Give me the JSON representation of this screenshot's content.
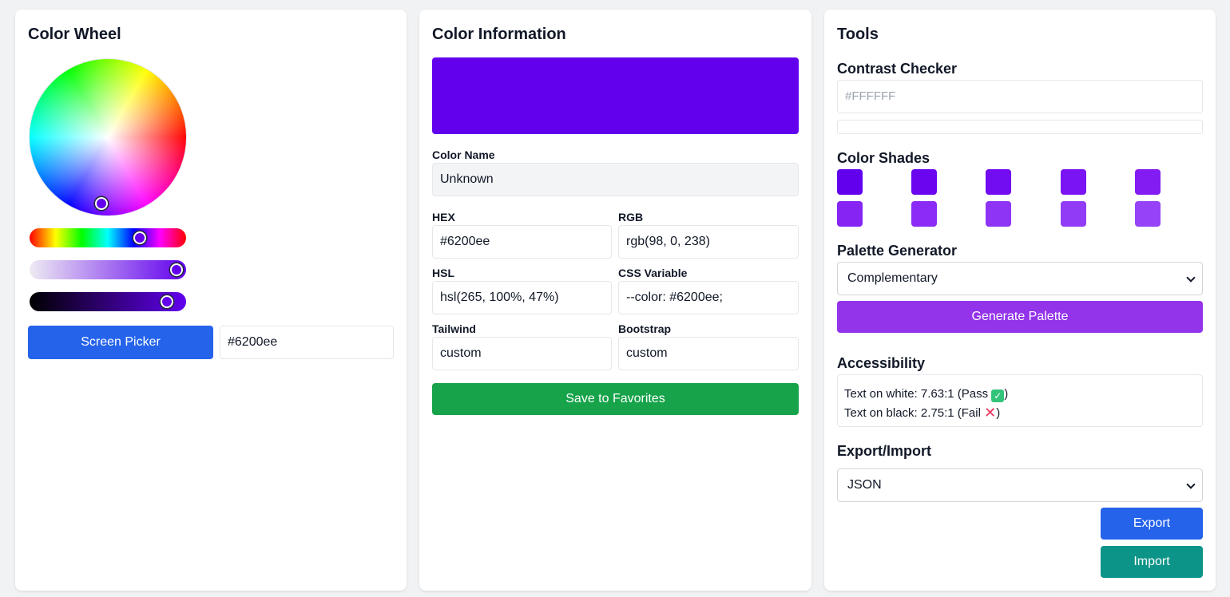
{
  "wheel_panel": {
    "title": "Color Wheel",
    "screen_picker_label": "Screen Picker",
    "hex_input_value": "#6200ee"
  },
  "info_panel": {
    "title": "Color Information",
    "current_color": "#6200ee",
    "color_name_label": "Color Name",
    "color_name_value": "Unknown",
    "hex_label": "HEX",
    "hex_value": "#6200ee",
    "rgb_label": "RGB",
    "rgb_value": "rgb(98, 0, 238)",
    "hsl_label": "HSL",
    "hsl_value": "hsl(265, 100%, 47%)",
    "css_var_label": "CSS Variable",
    "css_var_value": "--color: #6200ee;",
    "tailwind_label": "Tailwind",
    "tailwind_value": "custom",
    "bootstrap_label": "Bootstrap",
    "bootstrap_value": "custom",
    "save_label": "Save to Favorites"
  },
  "tools_panel": {
    "title": "Tools",
    "contrast_title": "Contrast Checker",
    "contrast_placeholder": "#FFFFFF",
    "shades_title": "Color Shades",
    "shades": [
      "#6200ee",
      "#6a05f0",
      "#720cf1",
      "#7a14f2",
      "#821cf3",
      "#8624f4",
      "#8a2cf5",
      "#8e34f5",
      "#923bf6",
      "#9642f7"
    ],
    "palette_title": "Palette Generator",
    "palette_selected": "Complementary",
    "generate_label": "Generate Palette",
    "accessibility_title": "Accessibility",
    "text_on_white": "Text on white: 7.63:1 (Pass",
    "text_on_black": "Text on black: 2.75:1 (Fail",
    "export_title": "Export/Import",
    "export_format_selected": "JSON",
    "export_label": "Export",
    "import_label": "Import"
  },
  "colors": {
    "primary_blue": "#2563eb",
    "save_green": "#16a34a",
    "generate_purple": "#9333ea",
    "import_teal": "#0d9488"
  }
}
